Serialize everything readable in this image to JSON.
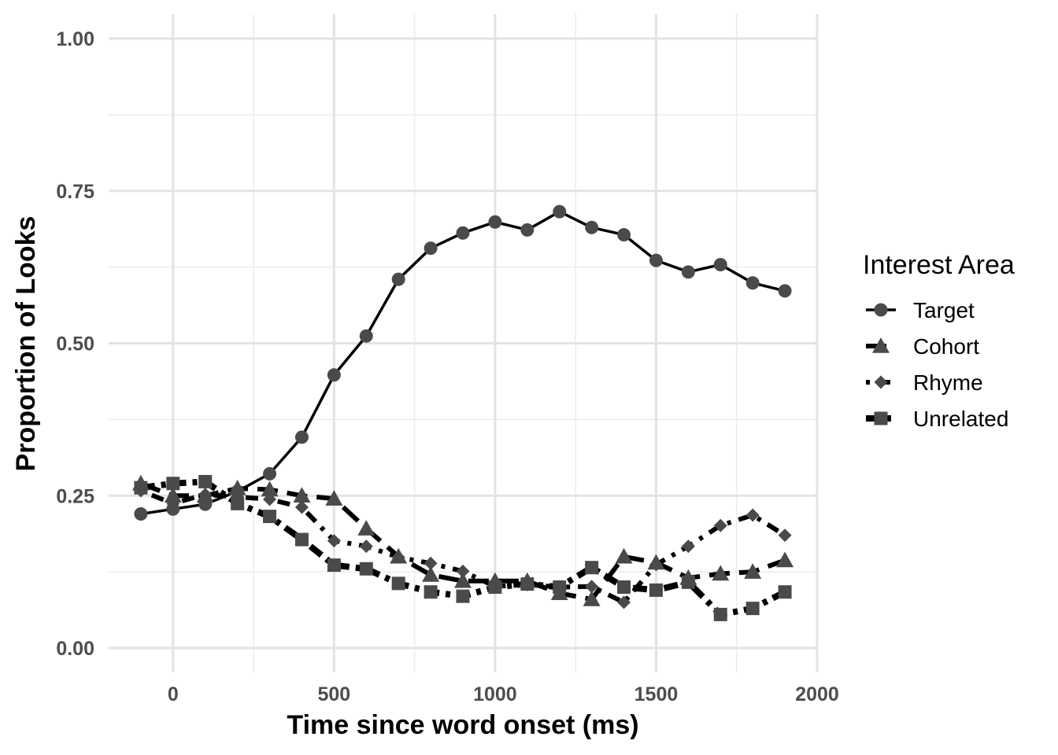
{
  "chart_data": {
    "type": "line",
    "title": "",
    "xlabel": "Time since word onset (ms)",
    "ylabel": "Proportion of Looks",
    "xlim": [
      -200,
      2000
    ],
    "ylim": [
      -0.04,
      1.04
    ],
    "x_ticks": [
      0,
      500,
      1000,
      1500,
      2000
    ],
    "x_tick_labels": [
      "0",
      "500",
      "1000",
      "1500",
      "2000"
    ],
    "y_ticks": [
      0,
      0.25,
      0.5,
      0.75,
      1
    ],
    "y_tick_labels": [
      "0.00",
      "0.25",
      "0.50",
      "0.75",
      "1.00"
    ],
    "grid": true,
    "legend": {
      "title": "Interest Area",
      "position": "right"
    },
    "x": [
      -100,
      0,
      100,
      200,
      300,
      400,
      500,
      600,
      700,
      800,
      900,
      1000,
      1100,
      1200,
      1300,
      1400,
      1500,
      1600,
      1700,
      1800,
      1900
    ],
    "series": [
      {
        "name": "Target",
        "marker": "circle",
        "dash": "solid",
        "values": [
          0.22,
          0.228,
          0.236,
          0.257,
          0.286,
          0.346,
          0.448,
          0.512,
          0.605,
          0.656,
          0.681,
          0.699,
          0.686,
          0.716,
          0.69,
          0.678,
          0.636,
          0.617,
          0.629,
          0.599,
          0.586
        ]
      },
      {
        "name": "Cohort",
        "marker": "triangle",
        "dash": "longdash",
        "values": [
          0.27,
          0.25,
          0.25,
          0.262,
          0.26,
          0.25,
          0.245,
          0.196,
          0.15,
          0.12,
          0.11,
          0.11,
          0.11,
          0.09,
          0.08,
          0.15,
          0.14,
          0.115,
          0.122,
          0.125,
          0.144
        ]
      },
      {
        "name": "Rhyme",
        "marker": "diamond",
        "dash": "dotdash",
        "values": [
          0.258,
          0.237,
          0.252,
          0.248,
          0.244,
          0.231,
          0.176,
          0.167,
          0.149,
          0.139,
          0.126,
          0.101,
          0.104,
          0.1,
          0.101,
          0.075,
          0.137,
          0.167,
          0.201,
          0.218,
          0.185
        ]
      },
      {
        "name": "Unrelated",
        "marker": "square",
        "dash": "twodash",
        "values": [
          0.263,
          0.27,
          0.273,
          0.237,
          0.216,
          0.178,
          0.136,
          0.13,
          0.106,
          0.092,
          0.085,
          0.1,
          0.105,
          0.1,
          0.132,
          0.1,
          0.095,
          0.108,
          0.055,
          0.065,
          0.092
        ]
      }
    ]
  }
}
